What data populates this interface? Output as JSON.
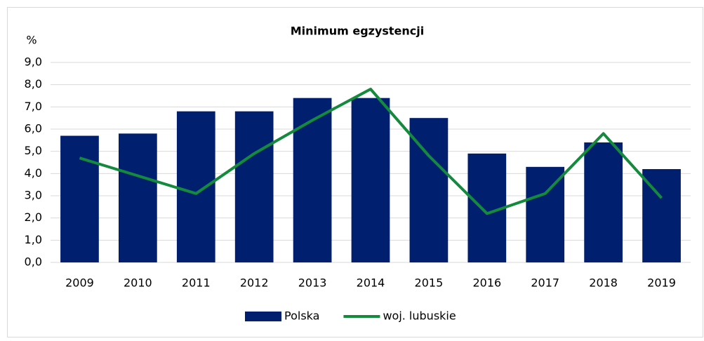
{
  "chart_data": {
    "type": "bar",
    "title": "Minimum egzystencji",
    "y_label": "%",
    "categories": [
      "2009",
      "2010",
      "2011",
      "2012",
      "2013",
      "2014",
      "2015",
      "2016",
      "2017",
      "2018",
      "2019"
    ],
    "series": [
      {
        "name": "Polska",
        "type": "bar",
        "color": "#001f6f",
        "values": [
          5.7,
          5.8,
          6.8,
          6.8,
          7.4,
          7.4,
          6.5,
          4.9,
          4.3,
          5.4,
          4.2
        ]
      },
      {
        "name": "woj. lubuskie",
        "type": "line",
        "color": "#138a3c",
        "values": [
          4.7,
          3.9,
          3.1,
          4.9,
          6.4,
          7.8,
          4.8,
          2.2,
          3.1,
          5.8,
          2.9
        ]
      }
    ],
    "ylim": [
      0,
      9
    ],
    "yticks": [
      {
        "value": 0,
        "label": "0,0"
      },
      {
        "value": 1,
        "label": "1,0"
      },
      {
        "value": 2,
        "label": "2,0"
      },
      {
        "value": 3,
        "label": "3,0"
      },
      {
        "value": 4,
        "label": "4,0"
      },
      {
        "value": 5,
        "label": "5,0"
      },
      {
        "value": 6,
        "label": "6,0"
      },
      {
        "value": 7,
        "label": "7,0"
      },
      {
        "value": 8,
        "label": "8,0"
      },
      {
        "value": 9,
        "label": "9,0"
      }
    ],
    "grid": true,
    "legend": "bottom"
  }
}
